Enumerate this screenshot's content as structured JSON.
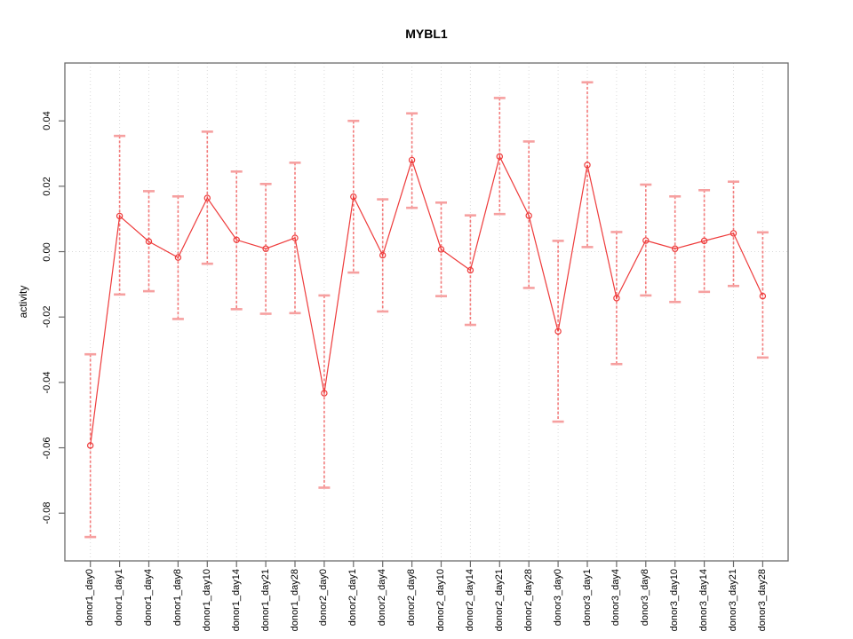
{
  "figure": {
    "title": "MYBL1",
    "y_axis_label": "activity"
  },
  "chart_data": {
    "type": "line",
    "title": "MYBL1",
    "xlabel": "",
    "ylabel": "activity",
    "legend_position": "none",
    "grid": "dotted vertical gridline at every category; dotted horizontal line at y=0",
    "ylim": [
      -0.0946,
      0.0577
    ],
    "ytick_values": [
      0.04,
      0.02,
      0,
      -0.02,
      -0.04,
      -0.06,
      -0.08
    ],
    "ytick_labels": [
      "0.04",
      "0.02",
      "0.00",
      "-0.02",
      "-0.04",
      "-0.06",
      "-0.08"
    ],
    "categories": [
      "donor1_day0",
      "donor1_day1",
      "donor1_day4",
      "donor1_day8",
      "donor1_day10",
      "donor1_day14",
      "donor1_day21",
      "donor1_day28",
      "donor2_day0",
      "donor2_day1",
      "donor2_day4",
      "donor2_day8",
      "donor2_day10",
      "donor2_day14",
      "donor2_day21",
      "donor2_day28",
      "donor3_day0",
      "donor3_day1",
      "donor3_day4",
      "donor3_day8",
      "donor3_day10",
      "donor3_day14",
      "donor3_day21",
      "donor3_day28"
    ],
    "series": [
      {
        "name": "MYBL1 activity",
        "marker": "open-circle",
        "values": [
          -0.0593,
          0.0109,
          0.0031,
          -0.0018,
          0.0164,
          0.0036,
          0.0009,
          0.0042,
          -0.0433,
          0.0168,
          -0.0011,
          0.028,
          0.0007,
          -0.0057,
          0.0291,
          0.011,
          -0.0244,
          0.0265,
          -0.0142,
          0.0034,
          0.0009,
          0.0033,
          0.0056,
          -0.0136
        ],
        "error_high": [
          -0.0314,
          0.0354,
          0.0185,
          0.0169,
          0.0367,
          0.0245,
          0.0207,
          0.0272,
          -0.0134,
          0.04,
          0.016,
          0.0423,
          0.015,
          0.0111,
          0.047,
          0.0337,
          0.0033,
          0.0518,
          0.006,
          0.0205,
          0.0169,
          0.0188,
          0.0214,
          0.0059
        ],
        "error_low": [
          -0.0873,
          -0.0131,
          -0.0121,
          -0.0206,
          -0.0037,
          -0.0176,
          -0.019,
          -0.0188,
          -0.0722,
          -0.0064,
          -0.0183,
          0.0134,
          -0.0136,
          -0.0224,
          0.0115,
          -0.0111,
          -0.052,
          0.0014,
          -0.0344,
          -0.0134,
          -0.0154,
          -0.0123,
          -0.0105,
          -0.0324
        ]
      }
    ],
    "colors": {
      "series_line": "#ee3b3b",
      "marker": "#ee3b3b",
      "error_stem": "#f37b7b",
      "error_cap": "#f6a0a0",
      "gridline": "#d9d9d9",
      "axis_box": "#6b6b6b",
      "text": "#000000"
    }
  }
}
